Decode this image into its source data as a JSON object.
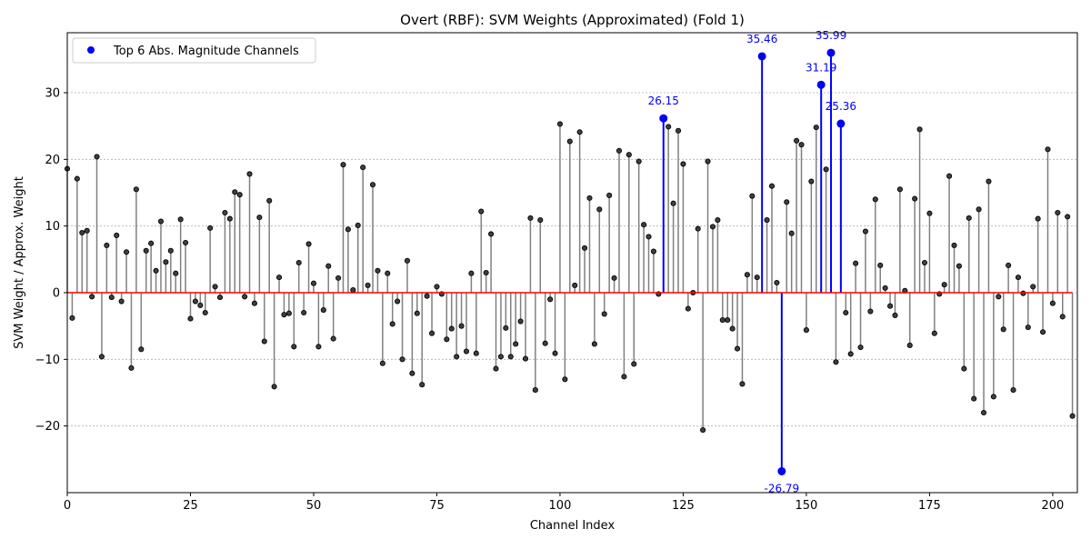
{
  "chart_data": {
    "type": "stem",
    "title": "Overt (RBF): SVM Weights (Approximated) (Fold 1)",
    "xlabel": "Channel Index",
    "ylabel": "SVM Weight / Approx. Weight",
    "xlim": [
      0,
      205
    ],
    "ylim": [
      -30,
      39
    ],
    "xticks": [
      0,
      25,
      50,
      75,
      100,
      125,
      150,
      175,
      200
    ],
    "yticks": [
      -20,
      -10,
      0,
      10,
      20,
      30
    ],
    "ytick_labels": [
      "−20",
      "−10",
      "0",
      "10",
      "20",
      "30"
    ],
    "grid": "horizontal dotted",
    "legend": {
      "position": "top-left",
      "entries": [
        "Top 6 Abs. Magnitude Channels"
      ]
    },
    "colors": {
      "stem": "#808080",
      "marker_face": "#404040",
      "marker_edge": "#000000",
      "baseline": "#ff0000",
      "highlight": "#0000ff",
      "grid": "#b0b0b0"
    },
    "highlight_indices": [
      121,
      141,
      145,
      153,
      155,
      157
    ],
    "annotations": [
      {
        "x": 121,
        "y": 26.15,
        "label": "26.15"
      },
      {
        "x": 141,
        "y": 35.46,
        "label": "35.46"
      },
      {
        "x": 145,
        "y": -26.79,
        "label": "-26.79"
      },
      {
        "x": 153,
        "y": 31.19,
        "label": "31.19"
      },
      {
        "x": 155,
        "y": 35.99,
        "label": "35.99"
      },
      {
        "x": 157,
        "y": 25.36,
        "label": "25.36"
      }
    ],
    "values": [
      18.6,
      -3.8,
      17.1,
      9.0,
      9.3,
      -0.6,
      20.4,
      -9.6,
      7.1,
      -0.7,
      8.6,
      -1.3,
      6.1,
      -11.3,
      15.5,
      -8.5,
      6.3,
      7.4,
      3.3,
      10.7,
      4.6,
      6.3,
      2.9,
      11.0,
      7.5,
      -3.9,
      -1.3,
      -1.9,
      -3.0,
      9.7,
      0.9,
      -0.7,
      12.0,
      11.1,
      15.1,
      14.7,
      -0.6,
      17.8,
      -1.6,
      11.3,
      -7.3,
      13.8,
      -14.1,
      2.3,
      -3.3,
      -3.1,
      -8.1,
      4.5,
      -3.0,
      7.3,
      1.4,
      -8.1,
      -2.6,
      4.0,
      -6.9,
      2.2,
      19.2,
      9.5,
      0.4,
      10.1,
      18.8,
      1.1,
      16.2,
      3.3,
      -10.6,
      2.9,
      -4.7,
      -1.3,
      -10.0,
      4.8,
      -12.1,
      -3.1,
      -13.8,
      -0.5,
      -6.1,
      0.9,
      -0.2,
      -7.0,
      -5.4,
      -9.6,
      -5.0,
      -8.8,
      2.9,
      -9.1,
      12.2,
      3.0,
      8.8,
      -11.4,
      -9.6,
      -5.3,
      -9.6,
      -7.7,
      -4.3,
      -9.9,
      11.2,
      -14.6,
      10.9,
      -7.6,
      -1.0,
      -9.1,
      25.3,
      -13.0,
      22.7,
      1.1,
      24.1,
      6.7,
      14.2,
      -7.7,
      12.5,
      -3.2,
      14.6,
      2.2,
      21.3,
      -12.6,
      20.7,
      -10.7,
      19.7,
      10.2,
      8.4,
      6.2,
      -0.2,
      26.15,
      24.9,
      13.4,
      24.3,
      19.3,
      -2.4,
      0.0,
      9.6,
      -20.6,
      19.7,
      9.9,
      10.9,
      -4.1,
      -4.1,
      -5.4,
      -8.4,
      -13.7,
      2.7,
      14.5,
      2.3,
      35.46,
      10.9,
      16.0,
      1.5,
      -26.79,
      13.6,
      8.9,
      22.8,
      22.2,
      -5.6,
      16.7,
      24.8,
      31.19,
      18.5,
      35.99,
      -10.4,
      25.36,
      -3.0,
      -9.2,
      4.4,
      -8.2,
      9.2,
      -2.8,
      14.0,
      4.1,
      0.7,
      -2.0,
      -3.4,
      15.5,
      0.3,
      -7.9,
      14.1,
      24.5,
      4.5,
      11.9,
      -6.1,
      -0.2,
      1.2,
      17.5,
      7.1,
      4.0,
      -11.4,
      11.2,
      -15.9,
      12.5,
      -18.0,
      16.7,
      -15.6,
      -0.6,
      -5.5,
      4.1,
      -14.6,
      2.3,
      -0.1,
      -5.2,
      0.9,
      11.1,
      -5.9,
      21.5,
      -1.6,
      12.0,
      -3.6,
      11.4,
      -18.5
    ]
  }
}
